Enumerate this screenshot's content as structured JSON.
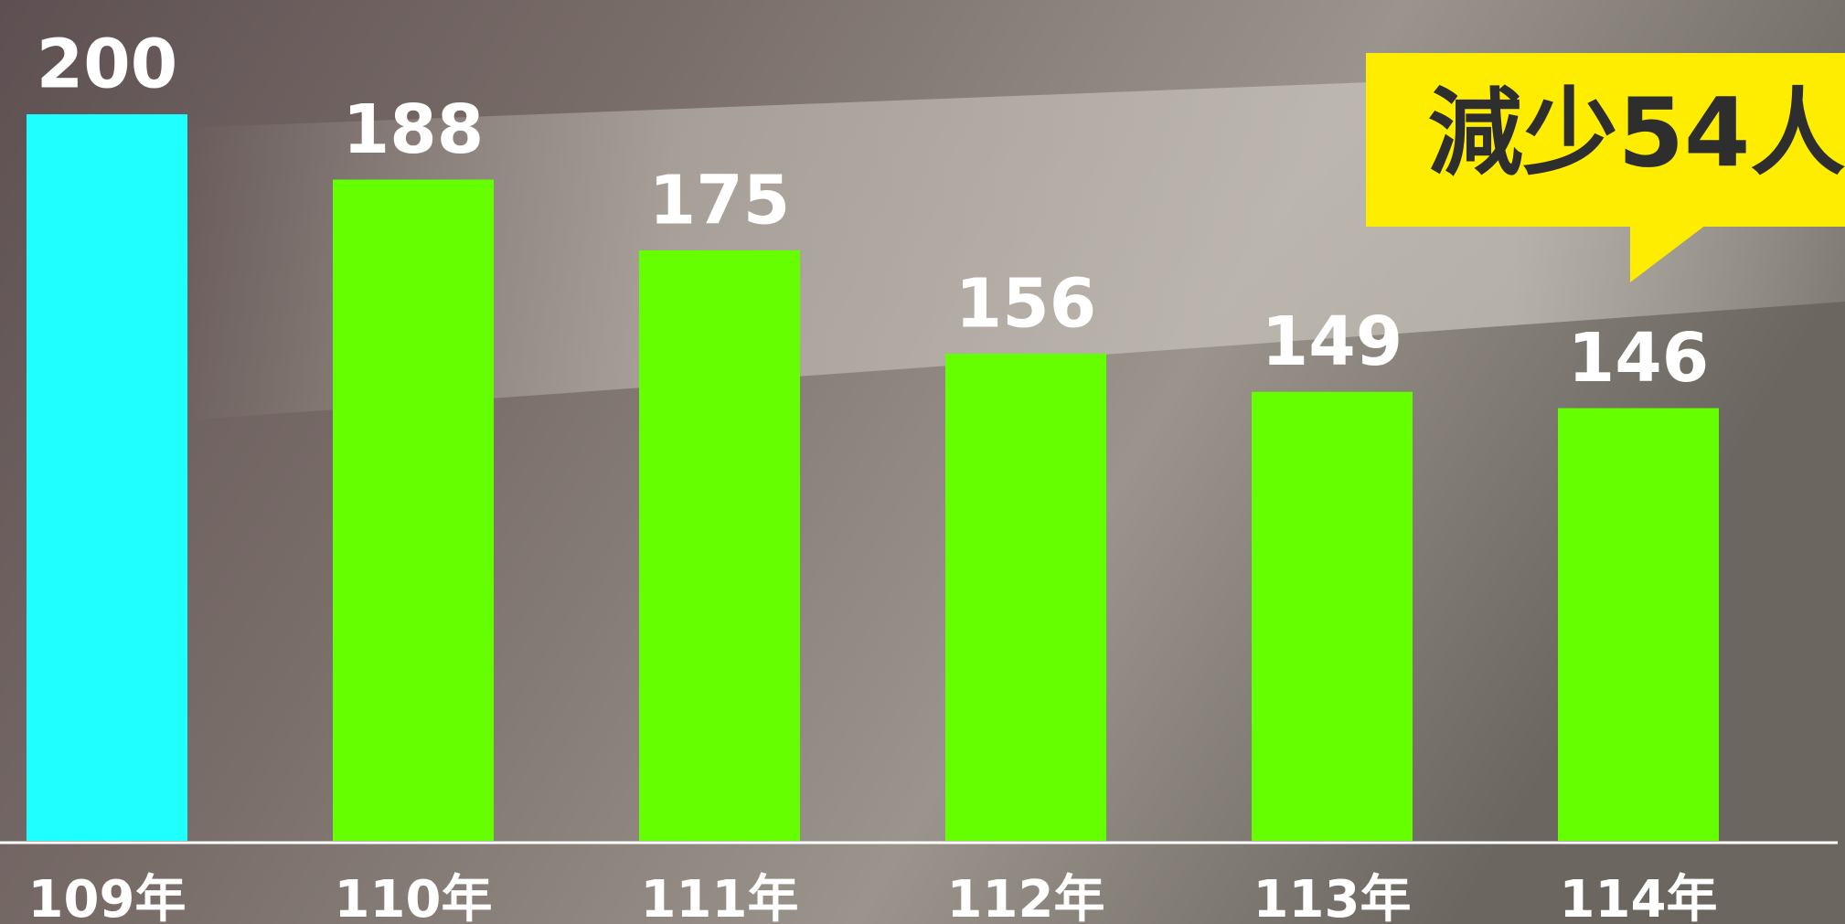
{
  "chart_data": {
    "type": "bar",
    "categories": [
      "109年",
      "110年",
      "111年",
      "112年",
      "113年",
      "114年"
    ],
    "values": [
      200,
      188,
      175,
      156,
      149,
      146
    ],
    "colors": [
      "#1effff",
      "#66ff00",
      "#66ff00",
      "#66ff00",
      "#66ff00",
      "#66ff00"
    ],
    "ylim": [
      66.5,
      221
    ],
    "annotation": "減少54人"
  }
}
